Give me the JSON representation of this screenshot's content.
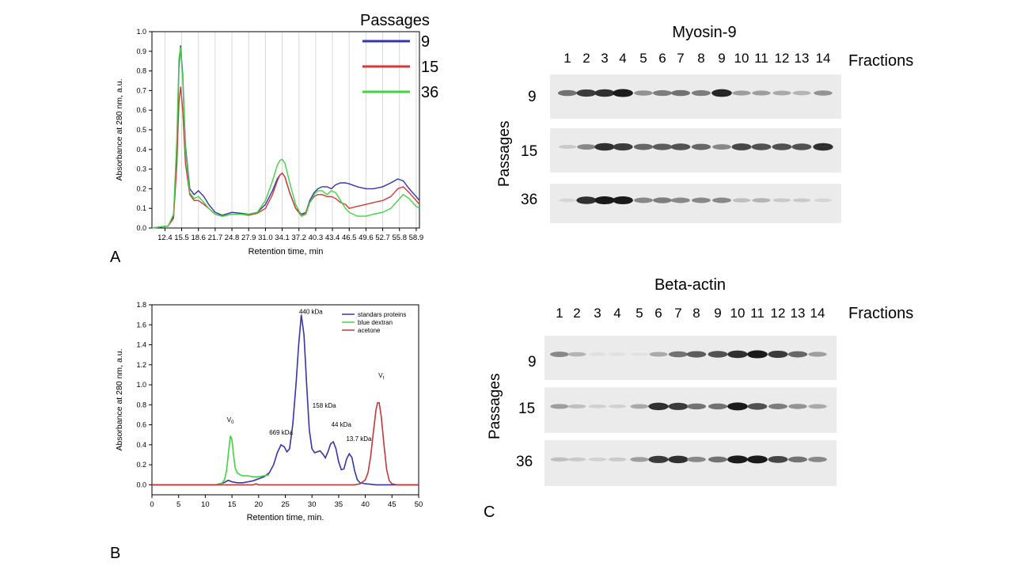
{
  "panel_labels": {
    "a": "A",
    "b": "B",
    "c": "C"
  },
  "chart_data": [
    {
      "type": "line",
      "panel": "A",
      "title": "",
      "xlabel": "Retention time, min",
      "ylabel": "Absorbance at 280 nm, a.u.",
      "xlim": [
        10.0,
        59.5
      ],
      "ylim": [
        0.0,
        1.0
      ],
      "grid": "vertical",
      "x_tick_labels": [
        "12.4",
        "15.5",
        "18.6",
        "21.7",
        "24.8",
        "27.9",
        "31.0",
        "34.1",
        "37.2",
        "40.3",
        "43.4",
        "46.5",
        "49.6",
        "52.7",
        "55.8",
        "58.9"
      ],
      "x_ticks": [
        12.4,
        15.5,
        18.6,
        21.7,
        24.8,
        27.9,
        31.0,
        34.1,
        37.2,
        40.3,
        43.4,
        46.5,
        49.6,
        52.7,
        55.8,
        58.9
      ],
      "y_ticks": [
        0.0,
        0.1,
        0.2,
        0.3,
        0.4,
        0.5,
        0.6,
        0.7,
        0.8,
        0.9,
        1.0
      ],
      "y_tick_labels": [
        "0.0",
        "0.1",
        "0.2",
        "0.3",
        "0.4",
        "0.5",
        "0.6",
        "0.7",
        "0.8",
        "0.9",
        "1.0"
      ],
      "legend_title": "Passages",
      "legend_position": "top-right",
      "series": [
        {
          "name": "9",
          "color": "#3535a8",
          "x": [
            10.0,
            13.0,
            14.0,
            14.6,
            15.0,
            15.3,
            15.7,
            16.2,
            17.0,
            17.8,
            18.6,
            19.6,
            20.5,
            21.7,
            23.0,
            24.8,
            26.5,
            27.9,
            29.5,
            31.0,
            32.3,
            33.2,
            33.7,
            34.1,
            34.6,
            35.5,
            36.6,
            37.7,
            38.5,
            39.2,
            40.0,
            40.7,
            41.5,
            42.4,
            43.2,
            44.0,
            44.9,
            45.8,
            46.5,
            48.0,
            49.6,
            51.0,
            52.7,
            54.2,
            55.5,
            56.5,
            57.6,
            58.9,
            59.5
          ],
          "y": [
            0.0,
            0.01,
            0.06,
            0.4,
            0.82,
            0.93,
            0.78,
            0.42,
            0.2,
            0.17,
            0.19,
            0.16,
            0.12,
            0.08,
            0.065,
            0.08,
            0.075,
            0.07,
            0.08,
            0.12,
            0.19,
            0.25,
            0.27,
            0.28,
            0.26,
            0.18,
            0.1,
            0.07,
            0.08,
            0.14,
            0.18,
            0.2,
            0.21,
            0.21,
            0.2,
            0.22,
            0.23,
            0.23,
            0.225,
            0.21,
            0.2,
            0.2,
            0.21,
            0.23,
            0.25,
            0.24,
            0.2,
            0.16,
            0.14
          ]
        },
        {
          "name": "15",
          "color": "#d03a3a",
          "x": [
            10.0,
            13.0,
            14.0,
            14.6,
            15.0,
            15.3,
            15.7,
            16.2,
            17.0,
            17.8,
            18.6,
            19.6,
            20.5,
            21.7,
            23.0,
            24.8,
            26.5,
            27.9,
            29.5,
            31.0,
            32.3,
            33.2,
            33.7,
            34.1,
            34.6,
            35.5,
            36.6,
            37.7,
            38.5,
            39.2,
            40.0,
            40.7,
            41.5,
            42.4,
            43.2,
            44.0,
            44.9,
            45.8,
            46.5,
            48.0,
            49.6,
            51.0,
            52.7,
            54.2,
            55.5,
            56.5,
            57.6,
            58.9,
            59.5
          ],
          "y": [
            0.0,
            0.01,
            0.05,
            0.32,
            0.64,
            0.72,
            0.6,
            0.33,
            0.17,
            0.14,
            0.14,
            0.12,
            0.1,
            0.07,
            0.06,
            0.07,
            0.07,
            0.065,
            0.075,
            0.1,
            0.17,
            0.24,
            0.27,
            0.28,
            0.26,
            0.18,
            0.1,
            0.06,
            0.08,
            0.13,
            0.16,
            0.17,
            0.17,
            0.16,
            0.16,
            0.15,
            0.13,
            0.12,
            0.1,
            0.11,
            0.12,
            0.13,
            0.14,
            0.16,
            0.2,
            0.21,
            0.18,
            0.14,
            0.12
          ]
        },
        {
          "name": "36",
          "color": "#3fd43f",
          "x": [
            10.0,
            13.0,
            14.0,
            14.6,
            15.0,
            15.3,
            15.7,
            16.2,
            17.0,
            17.8,
            18.6,
            19.6,
            20.5,
            21.7,
            23.0,
            24.8,
            26.5,
            27.9,
            29.5,
            31.0,
            32.3,
            33.2,
            33.7,
            34.1,
            34.6,
            35.5,
            36.6,
            37.7,
            38.5,
            39.2,
            40.0,
            40.7,
            41.5,
            42.4,
            43.2,
            44.0,
            44.9,
            45.8,
            46.5,
            48.0,
            49.6,
            51.0,
            52.7,
            54.2,
            55.5,
            56.5,
            57.6,
            58.9,
            59.5
          ],
          "y": [
            0.0,
            0.01,
            0.07,
            0.45,
            0.86,
            0.92,
            0.76,
            0.4,
            0.18,
            0.15,
            0.16,
            0.13,
            0.1,
            0.07,
            0.06,
            0.07,
            0.07,
            0.07,
            0.08,
            0.14,
            0.24,
            0.32,
            0.345,
            0.35,
            0.33,
            0.23,
            0.12,
            0.06,
            0.07,
            0.13,
            0.17,
            0.19,
            0.19,
            0.17,
            0.19,
            0.18,
            0.14,
            0.1,
            0.08,
            0.06,
            0.06,
            0.07,
            0.08,
            0.1,
            0.14,
            0.17,
            0.15,
            0.11,
            0.1
          ]
        }
      ]
    },
    {
      "type": "line",
      "panel": "B",
      "title": "",
      "xlabel": "Retention time, min.",
      "ylabel": "Absorbance at 280 nm, a.u.",
      "xlim": [
        0,
        50
      ],
      "ylim": [
        -0.1,
        1.8
      ],
      "grid": "off",
      "x_ticks": [
        0,
        5,
        10,
        15,
        20,
        25,
        30,
        35,
        40,
        45,
        50
      ],
      "x_tick_labels": [
        "0",
        "5",
        "10",
        "15",
        "20",
        "25",
        "30",
        "35",
        "40",
        "45",
        "50"
      ],
      "y_ticks": [
        0.0,
        0.2,
        0.4,
        0.6,
        0.8,
        1.0,
        1.2,
        1.4,
        1.6,
        1.8
      ],
      "y_tick_labels": [
        "0.0",
        "0.2",
        "0.4",
        "0.6",
        "0.8",
        "1.0",
        "1.2",
        "1.4",
        "1.6",
        "1.8"
      ],
      "legend_position": "top-right",
      "annotations": [
        {
          "text": "440 kDa",
          "x": 29.8,
          "y": 1.71
        },
        {
          "text": "158 kDa",
          "x": 32.3,
          "y": 0.77
        },
        {
          "text": "669 kDa",
          "x": 24.2,
          "y": 0.5
        },
        {
          "text": "44 kDa",
          "x": 35.5,
          "y": 0.58
        },
        {
          "text": "13.7 kDa",
          "x": 38.8,
          "y": 0.44
        },
        {
          "text": "V",
          "sub": "0",
          "x": 14.7,
          "y": 0.63
        },
        {
          "text": "V",
          "sub": "t",
          "x": 43.0,
          "y": 1.07
        }
      ],
      "series": [
        {
          "name": "standars proteins",
          "color": "#3535a8",
          "x": [
            0,
            12,
            13.5,
            14.3,
            15,
            16,
            17,
            18,
            19,
            20,
            21,
            22,
            22.8,
            23.5,
            24.2,
            24.8,
            25.3,
            25.8,
            26.4,
            27,
            27.5,
            28,
            28.5,
            29,
            29.5,
            30,
            30.5,
            31,
            31.5,
            32,
            32.5,
            33,
            33.5,
            34,
            34.5,
            35,
            35.5,
            36,
            36.5,
            37,
            37.5,
            38,
            38.5,
            39,
            40,
            41,
            42,
            45,
            50
          ],
          "y": [
            0.0,
            0.0,
            0.02,
            0.045,
            0.03,
            0.02,
            0.02,
            0.03,
            0.04,
            0.06,
            0.08,
            0.12,
            0.2,
            0.32,
            0.4,
            0.38,
            0.33,
            0.36,
            0.6,
            1.0,
            1.4,
            1.7,
            1.5,
            1.0,
            0.55,
            0.36,
            0.32,
            0.33,
            0.34,
            0.31,
            0.27,
            0.33,
            0.41,
            0.43,
            0.36,
            0.23,
            0.15,
            0.16,
            0.26,
            0.31,
            0.27,
            0.14,
            0.05,
            0.02,
            0.01,
            0.005,
            0.0,
            0.0,
            0.0
          ]
        },
        {
          "name": "blue dextran",
          "color": "#3fd43f",
          "x": [
            12,
            13,
            13.6,
            14,
            14.4,
            14.7,
            15,
            15.3,
            15.6,
            16,
            16.5,
            17,
            18,
            19,
            20,
            21,
            22
          ],
          "y": [
            0.0,
            0.01,
            0.05,
            0.15,
            0.35,
            0.49,
            0.45,
            0.3,
            0.17,
            0.12,
            0.1,
            0.09,
            0.09,
            0.08,
            0.08,
            0.09,
            0.1
          ]
        },
        {
          "name": "acetone",
          "color": "#c0393a",
          "x": [
            0,
            10,
            19,
            19.5,
            20,
            30,
            38,
            39,
            40,
            40.5,
            41,
            41.5,
            42,
            42.3,
            42.6,
            43,
            43.5,
            44,
            44.5,
            45,
            46,
            50
          ],
          "y": [
            0.0,
            0.0,
            0.0,
            0.01,
            0.0,
            0.0,
            0.0,
            0.01,
            0.05,
            0.12,
            0.28,
            0.52,
            0.75,
            0.82,
            0.82,
            0.68,
            0.4,
            0.15,
            0.04,
            0.01,
            0.0,
            0.0
          ]
        }
      ]
    }
  ],
  "blots": [
    {
      "title": "Myosin-9",
      "fractions_label": "Fractions",
      "passages_label": "Passages",
      "lanes": [
        "1",
        "2",
        "3",
        "4",
        "5",
        "6",
        "7",
        "8",
        "9",
        "10",
        "11",
        "12",
        "13",
        "14"
      ],
      "rows": [
        {
          "passage": "9",
          "intensities": [
            0.55,
            0.8,
            0.85,
            0.95,
            0.4,
            0.5,
            0.55,
            0.5,
            0.9,
            0.35,
            0.35,
            0.3,
            0.25,
            0.4
          ]
        },
        {
          "passage": "15",
          "intensities": [
            0.15,
            0.45,
            0.85,
            0.8,
            0.6,
            0.65,
            0.7,
            0.6,
            0.45,
            0.75,
            0.7,
            0.7,
            0.7,
            0.85
          ]
        },
        {
          "passage": "36",
          "intensities": [
            0.1,
            0.85,
            0.95,
            0.95,
            0.45,
            0.5,
            0.45,
            0.45,
            0.45,
            0.2,
            0.25,
            0.15,
            0.15,
            0.1
          ]
        }
      ]
    },
    {
      "title": "Beta-actin",
      "fractions_label": "Fractions",
      "passages_label": "Passages",
      "lanes": [
        "1",
        "2",
        "3",
        "4",
        "5",
        "6",
        "7",
        "8",
        "9",
        "10",
        "11",
        "12",
        "13",
        "14"
      ],
      "rows": [
        {
          "passage": "9",
          "intensities": [
            0.45,
            0.25,
            0.05,
            0.05,
            0.05,
            0.3,
            0.55,
            0.65,
            0.7,
            0.85,
            0.95,
            0.8,
            0.6,
            0.35
          ]
        },
        {
          "passage": "15",
          "intensities": [
            0.35,
            0.2,
            0.12,
            0.12,
            0.3,
            0.85,
            0.8,
            0.55,
            0.55,
            0.95,
            0.7,
            0.5,
            0.4,
            0.3
          ]
        },
        {
          "passage": "36",
          "intensities": [
            0.2,
            0.15,
            0.12,
            0.15,
            0.35,
            0.8,
            0.85,
            0.45,
            0.55,
            0.95,
            0.95,
            0.75,
            0.55,
            0.45
          ]
        }
      ]
    }
  ]
}
